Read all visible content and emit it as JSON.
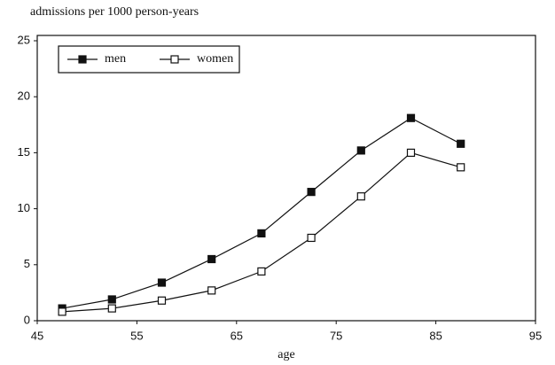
{
  "chart_data": {
    "type": "line",
    "title": "admissions per 1000 person-years",
    "xlabel": "age",
    "x": [
      47.5,
      52.5,
      57.5,
      62.5,
      67.5,
      72.5,
      77.5,
      82.5,
      87.5
    ],
    "series": [
      {
        "name": "men",
        "color": "#111111",
        "marker": "filled",
        "values": [
          1.1,
          1.9,
          3.4,
          5.5,
          7.8,
          11.5,
          15.2,
          18.1,
          15.8
        ]
      },
      {
        "name": "women",
        "color": "#111111",
        "marker": "open",
        "values": [
          0.8,
          1.1,
          1.8,
          2.7,
          4.4,
          7.4,
          11.1,
          15.0,
          13.7
        ]
      }
    ],
    "xlim": [
      45,
      95
    ],
    "xticks": [
      45,
      55,
      65,
      75,
      85,
      95
    ],
    "ylim": [
      0,
      25
    ],
    "yticks": [
      0,
      5,
      10,
      15,
      20,
      25
    ],
    "grid": false,
    "legend": "upper left"
  }
}
